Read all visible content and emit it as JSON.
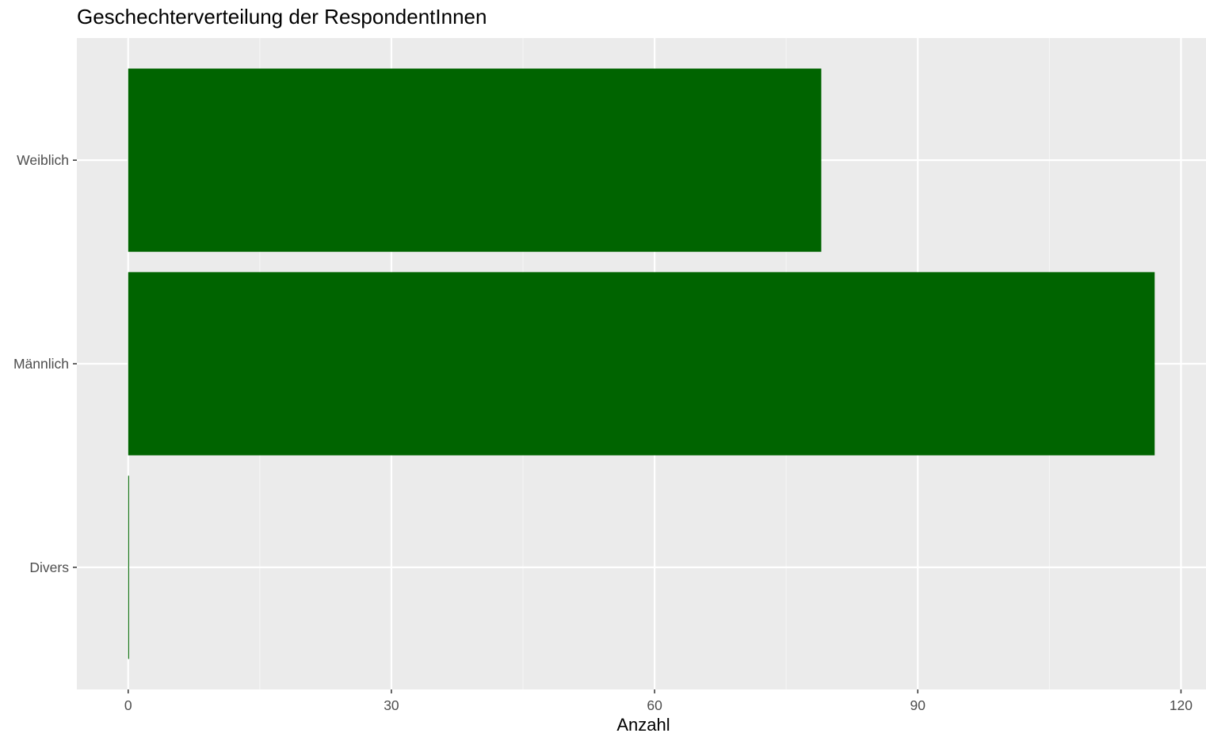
{
  "chart_data": {
    "type": "bar",
    "orientation": "horizontal",
    "title": "Geschechterverteilung der RespondentInnen",
    "xlabel": "Anzahl",
    "ylabel": "",
    "categories": [
      "Divers",
      "Männlich",
      "Weiblich"
    ],
    "values": [
      0.1,
      117,
      79
    ],
    "xlim": [
      -5.85,
      122.85
    ],
    "xticks": [
      0,
      30,
      60,
      90,
      120
    ],
    "xtick_labels": [
      "0",
      "30",
      "60",
      "90",
      "120"
    ],
    "grid": true,
    "legend": "none",
    "colors": {
      "bar": "#006400",
      "panel_background": "#ebebeb",
      "grid_major": "#ffffff",
      "grid_minor": "#f5f5f5",
      "tick_text": "#4d4d4d",
      "tick_mark": "#333333"
    }
  }
}
